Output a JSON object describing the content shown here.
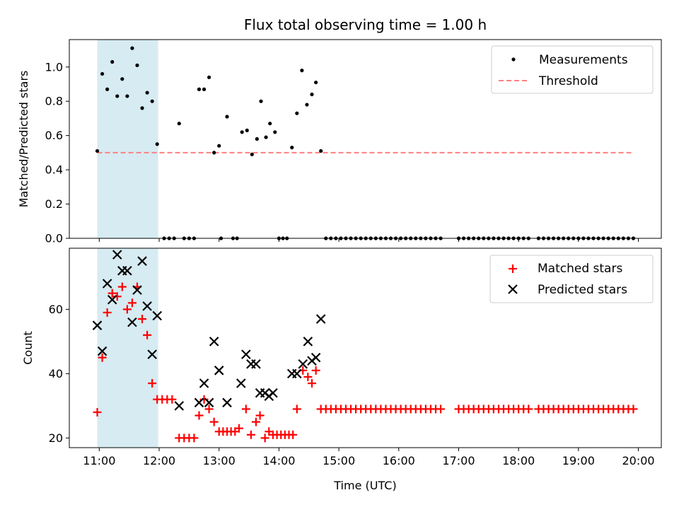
{
  "chart_data": [
    {
      "panel": "top",
      "type": "scatter",
      "title": "Flux total observing time = 1.00 h",
      "ylabel": "Matched/Predicted stars",
      "xlabel": "",
      "xlim": [
        "10:30",
        "20:23"
      ],
      "ylim": [
        0,
        1.16
      ],
      "y_ticks": [
        0.0,
        0.2,
        0.4,
        0.6,
        0.8,
        1.0
      ],
      "y_tick_labels": [
        "0.0",
        "0.2",
        "0.4",
        "0.6",
        "0.8",
        "1.0"
      ],
      "highlight_span": [
        "10:58",
        "11:59"
      ],
      "highlight_color": "#add8e6",
      "legend_placement": "upper right",
      "legend": [
        "Measurements",
        "Threshold"
      ],
      "threshold": {
        "name": "Threshold",
        "y": 0.5,
        "x_range": [
          "10:58",
          "19:55"
        ],
        "color": "#ff7f7f",
        "style": "dashed"
      },
      "series": [
        {
          "name": "Measurements",
          "marker": "dot",
          "color": "#000000",
          "points": [
            [
              "10:58",
              0.51
            ],
            [
              "11:03",
              0.96
            ],
            [
              "11:08",
              0.87
            ],
            [
              "11:13",
              1.03
            ],
            [
              "11:18",
              0.83
            ],
            [
              "11:23",
              0.93
            ],
            [
              "11:28",
              0.83
            ],
            [
              "11:33",
              1.11
            ],
            [
              "11:38",
              1.01
            ],
            [
              "11:43",
              0.76
            ],
            [
              "11:48",
              0.85
            ],
            [
              "11:53",
              0.8
            ],
            [
              "11:58",
              0.55
            ],
            [
              "12:05",
              0.0
            ],
            [
              "12:10",
              0.0
            ],
            [
              "12:15",
              0.0
            ],
            [
              "12:20",
              0.67
            ],
            [
              "12:25",
              0.0
            ],
            [
              "12:30",
              0.0
            ],
            [
              "12:35",
              0.0
            ],
            [
              "12:40",
              0.87
            ],
            [
              "12:45",
              0.87
            ],
            [
              "12:50",
              0.94
            ],
            [
              "12:55",
              0.5
            ],
            [
              "13:00",
              0.54
            ],
            [
              "13:02",
              0.0
            ],
            [
              "13:08",
              0.71
            ],
            [
              "13:14",
              0.0
            ],
            [
              "13:18",
              0.0
            ],
            [
              "13:23",
              0.62
            ],
            [
              "13:28",
              0.63
            ],
            [
              "13:33",
              0.49
            ],
            [
              "13:38",
              0.58
            ],
            [
              "13:42",
              0.8
            ],
            [
              "13:47",
              0.59
            ],
            [
              "13:51",
              0.67
            ],
            [
              "13:56",
              0.62
            ],
            [
              "14:00",
              0.0
            ],
            [
              "14:04",
              0.0
            ],
            [
              "14:08",
              0.0
            ],
            [
              "14:13",
              0.53
            ],
            [
              "14:18",
              0.73
            ],
            [
              "14:23",
              0.98
            ],
            [
              "14:28",
              0.78
            ],
            [
              "14:33",
              0.84
            ],
            [
              "14:37",
              0.91
            ],
            [
              "14:42",
              0.51
            ],
            [
              "14:47",
              0.0
            ],
            [
              "14:52",
              0.0
            ],
            [
              "14:57",
              0.0
            ],
            [
              "15:02",
              0.0
            ],
            [
              "15:07",
              0.0
            ],
            [
              "15:12",
              0.0
            ],
            [
              "15:17",
              0.0
            ],
            [
              "15:22",
              0.0
            ],
            [
              "15:27",
              0.0
            ],
            [
              "15:32",
              0.0
            ],
            [
              "15:37",
              0.0
            ],
            [
              "15:42",
              0.0
            ],
            [
              "15:47",
              0.0
            ],
            [
              "15:52",
              0.0
            ],
            [
              "15:57",
              0.0
            ],
            [
              "16:02",
              0.0
            ],
            [
              "16:07",
              0.0
            ],
            [
              "16:12",
              0.0
            ],
            [
              "16:17",
              0.0
            ],
            [
              "16:22",
              0.0
            ],
            [
              "16:27",
              0.0
            ],
            [
              "16:32",
              0.0
            ],
            [
              "16:37",
              0.0
            ],
            [
              "16:42",
              0.0
            ],
            [
              "17:00",
              0.0
            ],
            [
              "17:05",
              0.0
            ],
            [
              "17:10",
              0.0
            ],
            [
              "17:15",
              0.0
            ],
            [
              "17:20",
              0.0
            ],
            [
              "17:25",
              0.0
            ],
            [
              "17:30",
              0.0
            ],
            [
              "17:35",
              0.0
            ],
            [
              "17:40",
              0.0
            ],
            [
              "17:45",
              0.0
            ],
            [
              "17:50",
              0.0
            ],
            [
              "17:55",
              0.0
            ],
            [
              "18:00",
              0.0
            ],
            [
              "18:05",
              0.0
            ],
            [
              "18:10",
              0.0
            ],
            [
              "18:20",
              0.0
            ],
            [
              "18:25",
              0.0
            ],
            [
              "18:30",
              0.0
            ],
            [
              "18:35",
              0.0
            ],
            [
              "18:40",
              0.0
            ],
            [
              "18:45",
              0.0
            ],
            [
              "18:50",
              0.0
            ],
            [
              "18:55",
              0.0
            ],
            [
              "19:00",
              0.0
            ],
            [
              "19:05",
              0.0
            ],
            [
              "19:10",
              0.0
            ],
            [
              "19:15",
              0.0
            ],
            [
              "19:20",
              0.0
            ],
            [
              "19:25",
              0.0
            ],
            [
              "19:30",
              0.0
            ],
            [
              "19:35",
              0.0
            ],
            [
              "19:40",
              0.0
            ],
            [
              "19:45",
              0.0
            ],
            [
              "19:50",
              0.0
            ],
            [
              "19:55",
              0.0
            ]
          ]
        }
      ]
    },
    {
      "panel": "bottom",
      "type": "scatter",
      "title": "",
      "ylabel": "Count",
      "xlabel": "Time (UTC)",
      "xlim": [
        "10:30",
        "20:23"
      ],
      "ylim": [
        17,
        79
      ],
      "y_ticks": [
        20,
        40,
        60
      ],
      "y_tick_labels": [
        "20",
        "40",
        "60"
      ],
      "x_ticks": [
        "11:00",
        "12:00",
        "13:00",
        "14:00",
        "15:00",
        "16:00",
        "17:00",
        "18:00",
        "19:00",
        "20:00"
      ],
      "highlight_span": [
        "10:58",
        "11:59"
      ],
      "highlight_color": "#add8e6",
      "legend_placement": "upper right",
      "legend": [
        "Matched stars",
        "Predicted stars"
      ],
      "series": [
        {
          "name": "Matched stars",
          "marker": "plus",
          "color": "#ff0000",
          "points": [
            [
              "10:58",
              28
            ],
            [
              "11:03",
              45
            ],
            [
              "11:08",
              59
            ],
            [
              "11:13",
              65
            ],
            [
              "11:18",
              64
            ],
            [
              "11:23",
              67
            ],
            [
              "11:28",
              60
            ],
            [
              "11:33",
              62
            ],
            [
              "11:38",
              67
            ],
            [
              "11:43",
              57
            ],
            [
              "11:48",
              52
            ],
            [
              "11:53",
              37
            ],
            [
              "11:58",
              32
            ],
            [
              "12:03",
              32
            ],
            [
              "12:08",
              32
            ],
            [
              "12:13",
              32
            ],
            [
              "12:20",
              20
            ],
            [
              "12:25",
              20
            ],
            [
              "12:30",
              20
            ],
            [
              "12:35",
              20
            ],
            [
              "12:40",
              27
            ],
            [
              "12:45",
              32
            ],
            [
              "12:50",
              29
            ],
            [
              "12:55",
              25
            ],
            [
              "13:00",
              22
            ],
            [
              "13:04",
              22
            ],
            [
              "13:08",
              22
            ],
            [
              "13:12",
              22
            ],
            [
              "13:16",
              22
            ],
            [
              "13:20",
              23
            ],
            [
              "13:27",
              29
            ],
            [
              "13:32",
              21
            ],
            [
              "13:37",
              25
            ],
            [
              "13:41",
              27
            ],
            [
              "13:46",
              20
            ],
            [
              "13:50",
              22
            ],
            [
              "13:54",
              21
            ],
            [
              "13:58",
              21
            ],
            [
              "14:02",
              21
            ],
            [
              "14:06",
              21
            ],
            [
              "14:10",
              21
            ],
            [
              "14:14",
              21
            ],
            [
              "14:18",
              29
            ],
            [
              "14:24",
              41
            ],
            [
              "14:29",
              39
            ],
            [
              "14:33",
              37
            ],
            [
              "14:37",
              41
            ],
            [
              "14:42",
              29
            ],
            [
              "14:47",
              29
            ],
            [
              "14:52",
              29
            ],
            [
              "14:57",
              29
            ],
            [
              "15:02",
              29
            ],
            [
              "15:07",
              29
            ],
            [
              "15:12",
              29
            ],
            [
              "15:17",
              29
            ],
            [
              "15:22",
              29
            ],
            [
              "15:27",
              29
            ],
            [
              "15:32",
              29
            ],
            [
              "15:37",
              29
            ],
            [
              "15:42",
              29
            ],
            [
              "15:47",
              29
            ],
            [
              "15:52",
              29
            ],
            [
              "15:57",
              29
            ],
            [
              "16:02",
              29
            ],
            [
              "16:07",
              29
            ],
            [
              "16:12",
              29
            ],
            [
              "16:17",
              29
            ],
            [
              "16:22",
              29
            ],
            [
              "16:27",
              29
            ],
            [
              "16:32",
              29
            ],
            [
              "16:37",
              29
            ],
            [
              "16:42",
              29
            ],
            [
              "17:00",
              29
            ],
            [
              "17:05",
              29
            ],
            [
              "17:10",
              29
            ],
            [
              "17:15",
              29
            ],
            [
              "17:20",
              29
            ],
            [
              "17:25",
              29
            ],
            [
              "17:30",
              29
            ],
            [
              "17:35",
              29
            ],
            [
              "17:40",
              29
            ],
            [
              "17:45",
              29
            ],
            [
              "17:50",
              29
            ],
            [
              "17:55",
              29
            ],
            [
              "18:00",
              29
            ],
            [
              "18:05",
              29
            ],
            [
              "18:10",
              29
            ],
            [
              "18:20",
              29
            ],
            [
              "18:25",
              29
            ],
            [
              "18:30",
              29
            ],
            [
              "18:35",
              29
            ],
            [
              "18:40",
              29
            ],
            [
              "18:45",
              29
            ],
            [
              "18:50",
              29
            ],
            [
              "18:55",
              29
            ],
            [
              "19:00",
              29
            ],
            [
              "19:05",
              29
            ],
            [
              "19:10",
              29
            ],
            [
              "19:15",
              29
            ],
            [
              "19:20",
              29
            ],
            [
              "19:25",
              29
            ],
            [
              "19:30",
              29
            ],
            [
              "19:35",
              29
            ],
            [
              "19:40",
              29
            ],
            [
              "19:45",
              29
            ],
            [
              "19:50",
              29
            ],
            [
              "19:55",
              29
            ]
          ]
        },
        {
          "name": "Predicted stars",
          "marker": "x",
          "color": "#000000",
          "points": [
            [
              "10:58",
              55
            ],
            [
              "11:03",
              47
            ],
            [
              "11:08",
              68
            ],
            [
              "11:13",
              63
            ],
            [
              "11:18",
              77
            ],
            [
              "11:23",
              72
            ],
            [
              "11:28",
              72
            ],
            [
              "11:33",
              56
            ],
            [
              "11:38",
              66
            ],
            [
              "11:43",
              75
            ],
            [
              "11:48",
              61
            ],
            [
              "11:53",
              46
            ],
            [
              "11:58",
              58
            ],
            [
              "12:20",
              30
            ],
            [
              "12:40",
              31
            ],
            [
              "12:45",
              37
            ],
            [
              "12:50",
              31
            ],
            [
              "12:55",
              50
            ],
            [
              "13:00",
              41
            ],
            [
              "13:08",
              31
            ],
            [
              "13:22",
              37
            ],
            [
              "13:27",
              46
            ],
            [
              "13:32",
              43
            ],
            [
              "13:37",
              43
            ],
            [
              "13:41",
              34
            ],
            [
              "13:46",
              34
            ],
            [
              "13:50",
              33
            ],
            [
              "13:54",
              34
            ],
            [
              "14:13",
              40
            ],
            [
              "14:18",
              40
            ],
            [
              "14:24",
              43
            ],
            [
              "14:29",
              50
            ],
            [
              "14:33",
              44
            ],
            [
              "14:37",
              45
            ],
            [
              "14:42",
              57
            ]
          ]
        }
      ]
    }
  ]
}
